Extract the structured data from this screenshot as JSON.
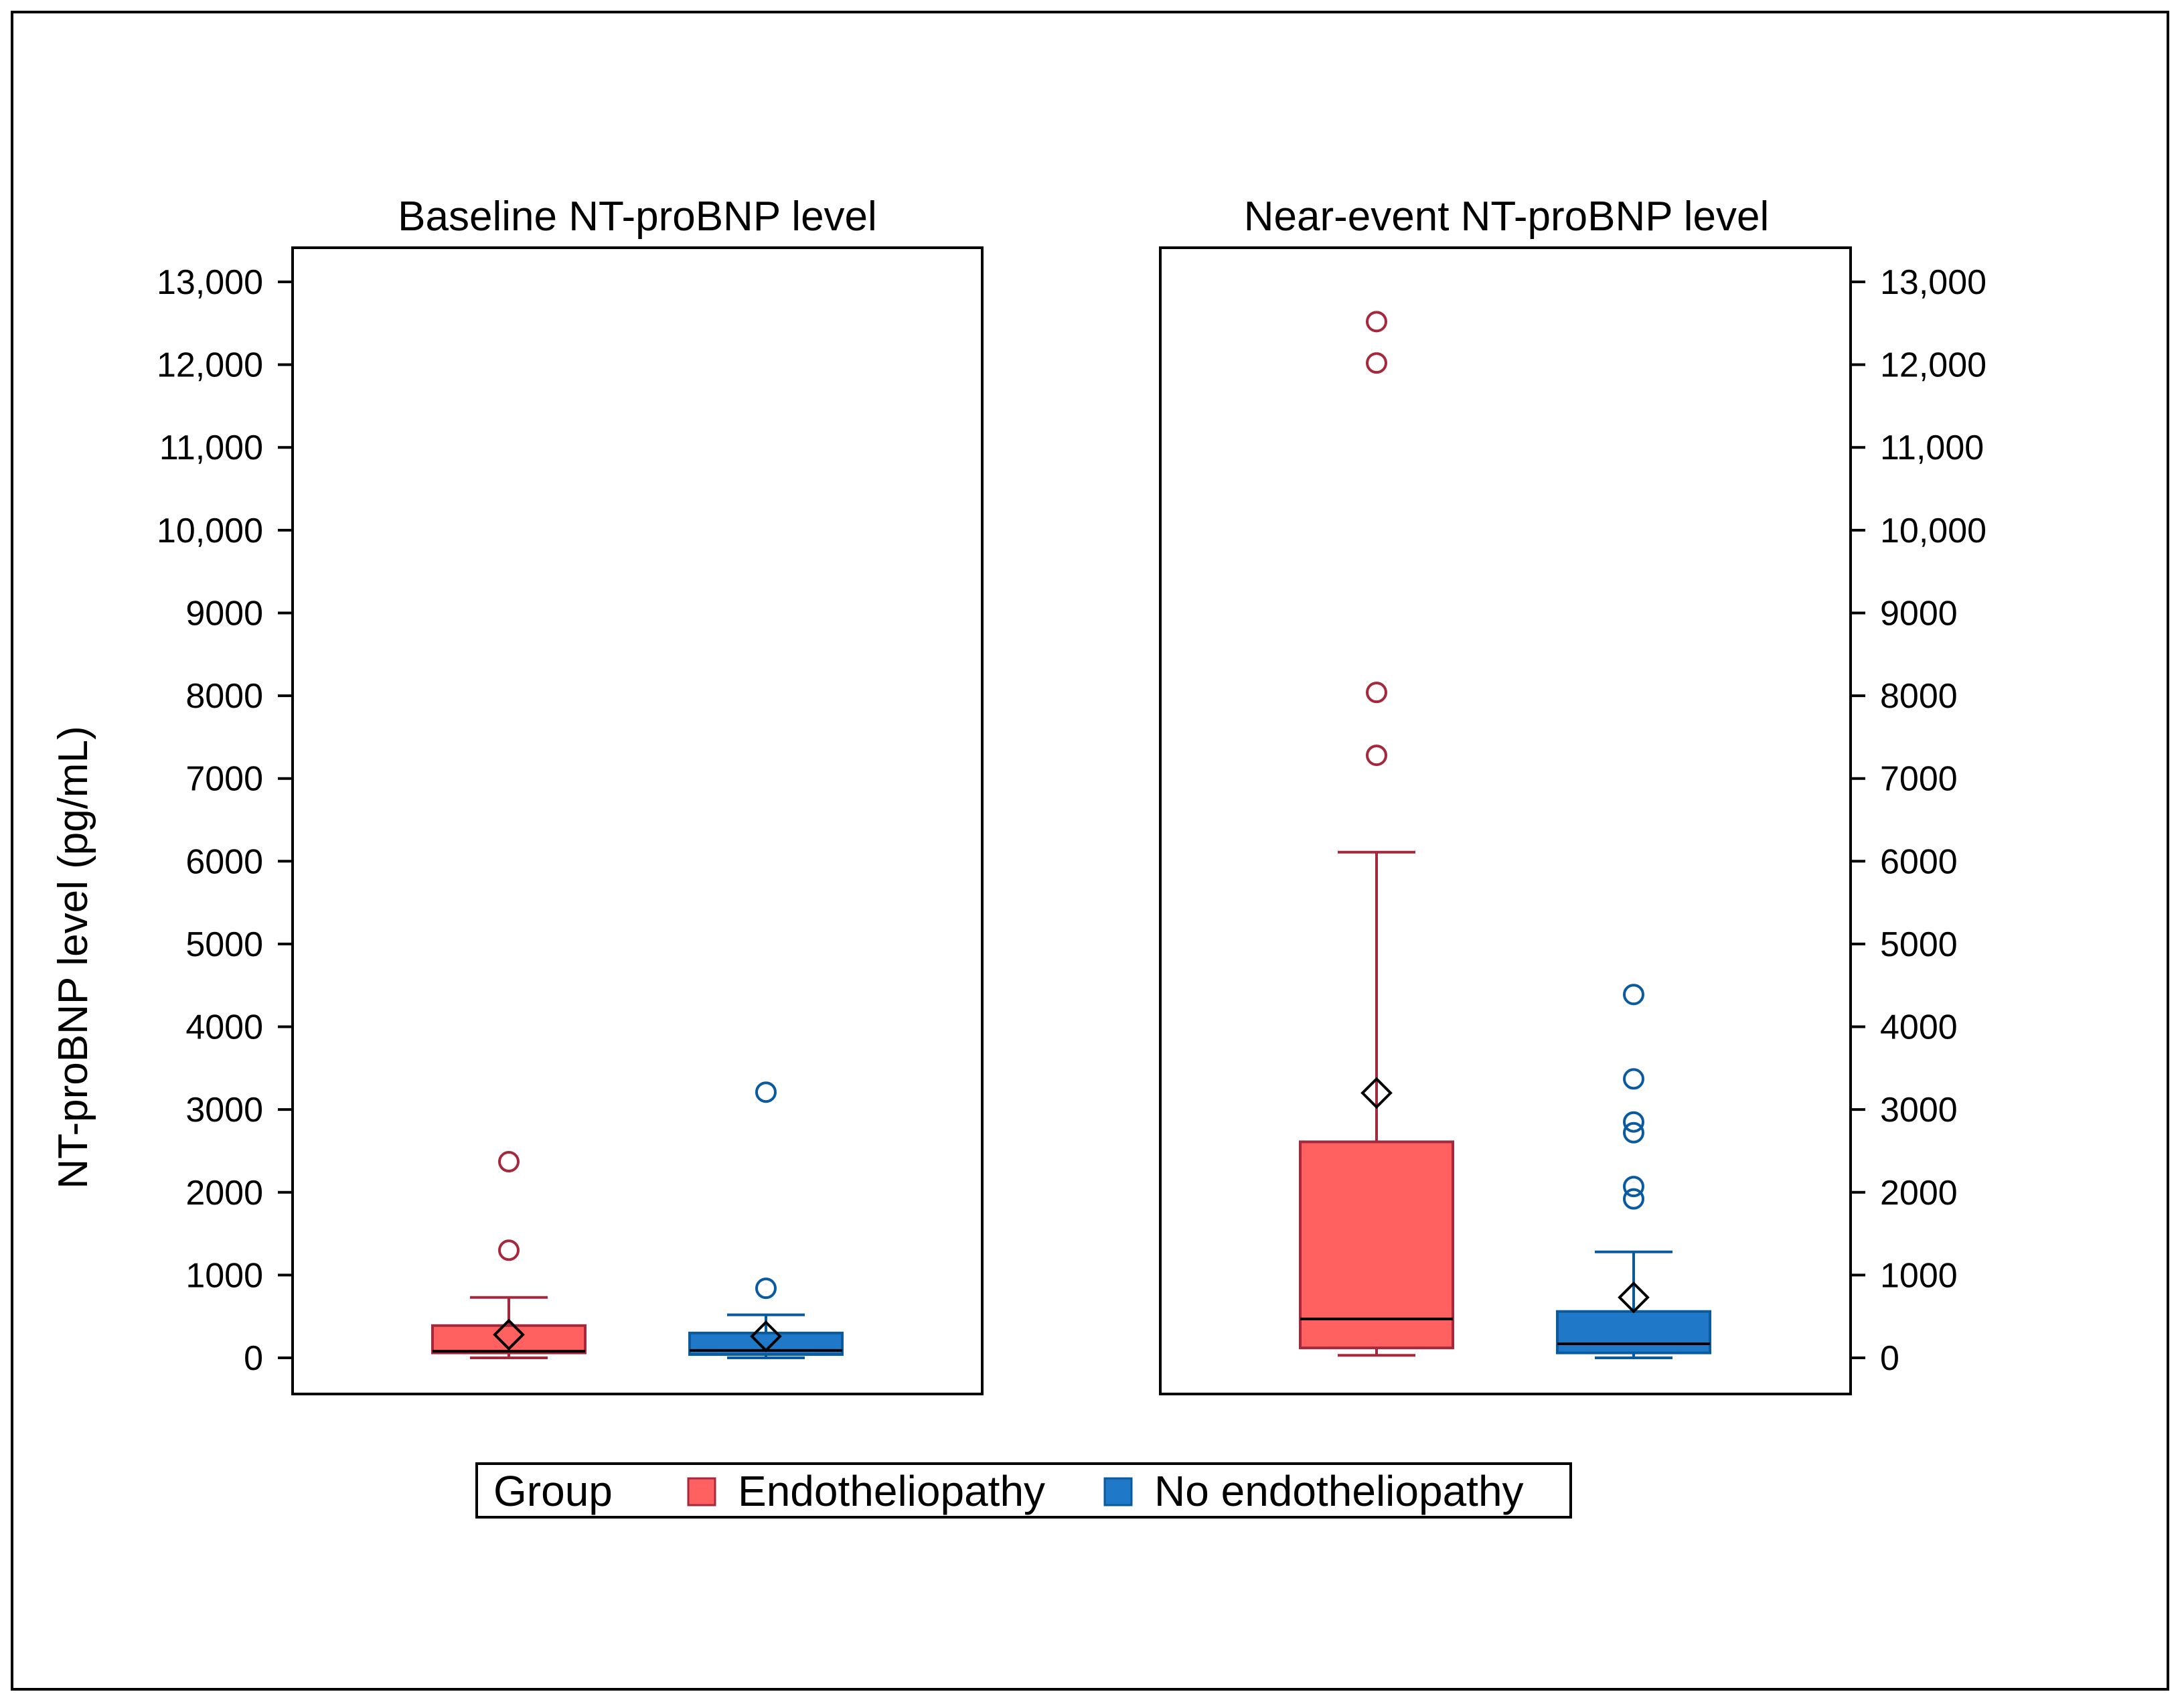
{
  "chart_data": {
    "type": "box",
    "ylabel": "NT-proBNP level (pg/mL)",
    "ylim": [
      -400,
      13400
    ],
    "yticks": [
      0,
      1000,
      2000,
      3000,
      4000,
      5000,
      6000,
      7000,
      8000,
      9000,
      10000,
      11000,
      12000,
      13000
    ],
    "ytick_labels": [
      "0",
      "1000",
      "2000",
      "3000",
      "4000",
      "5000",
      "6000",
      "7000",
      "8000",
      "9000",
      "10,000",
      "11,000",
      "12,000",
      "13,000"
    ],
    "legend": {
      "title": "Group",
      "position": "bottom-center",
      "entries": [
        {
          "name": "Endotheliopathy",
          "color": "#FF6060"
        },
        {
          "name": "No endotheliopathy",
          "color": "#1F78C8"
        }
      ]
    },
    "colors": {
      "Endotheliopathy": {
        "fill": "#FF6060",
        "line": "#A5283C"
      },
      "No endotheliopathy": {
        "fill": "#1F78C8",
        "line": "#0A5A9E"
      }
    },
    "panels": [
      {
        "title": "Baseline NT-proBNP level",
        "axis_side": "left",
        "series": [
          {
            "name": "Endotheliopathy",
            "whisker_low": 0,
            "q1": 60,
            "median": 80,
            "q3": 390,
            "whisker_high": 730,
            "mean": 280,
            "outliers": [
              1300,
              2370
            ]
          },
          {
            "name": "No endotheliopathy",
            "whisker_low": 0,
            "q1": 40,
            "median": 90,
            "q3": 300,
            "whisker_high": 520,
            "mean": 260,
            "outliers": [
              840,
              3210
            ]
          }
        ]
      },
      {
        "title": "Near-event NT-proBNP level",
        "axis_side": "right",
        "series": [
          {
            "name": "Endotheliopathy",
            "whisker_low": 30,
            "q1": 120,
            "median": 470,
            "q3": 2610,
            "whisker_high": 6110,
            "mean": 3200,
            "outliers": [
              7280,
              8040,
              12020,
              12520
            ]
          },
          {
            "name": "No endotheliopathy",
            "whisker_low": 0,
            "q1": 60,
            "median": 170,
            "q3": 560,
            "whisker_high": 1280,
            "mean": 730,
            "outliers": [
              1920,
              2070,
              2720,
              2850,
              3370,
              4390
            ]
          }
        ]
      }
    ]
  }
}
